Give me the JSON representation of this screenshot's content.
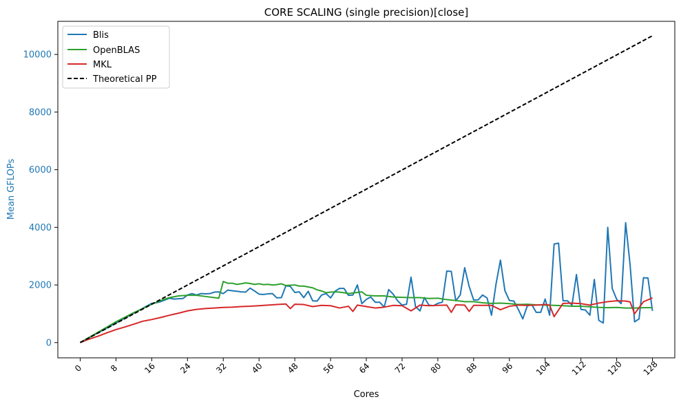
{
  "chart_data": {
    "type": "line",
    "title": "CORE SCALING (single precision)[close]",
    "xlabel": "Cores",
    "ylabel": "Mean GFLOPs",
    "xlim": [
      -5,
      133
    ],
    "ylim": [
      -530,
      11150
    ],
    "xticks": [
      "0",
      "8",
      "16",
      "24",
      "32",
      "40",
      "48",
      "56",
      "64",
      "72",
      "80",
      "88",
      "96",
      "104",
      "112",
      "120",
      "128"
    ],
    "yticks": [
      "0",
      "2000",
      "4000",
      "6000",
      "8000",
      "10000"
    ],
    "ytick_color": "#1f77b4",
    "grid": false,
    "legend_position": "top-left",
    "series": [
      {
        "name": "Blis",
        "color": "#1f77b4",
        "style": "solid",
        "x": [
          0,
          1,
          2,
          3,
          4,
          5,
          6,
          7,
          8,
          9,
          10,
          11,
          12,
          13,
          14,
          15,
          16,
          17,
          18,
          19,
          20,
          21,
          22,
          23,
          24,
          25,
          26,
          27,
          28,
          29,
          30,
          31,
          32,
          33,
          34,
          35,
          36,
          37,
          38,
          39,
          40,
          41,
          42,
          43,
          44,
          45,
          46,
          47,
          48,
          49,
          50,
          51,
          52,
          53,
          54,
          55,
          56,
          57,
          58,
          59,
          60,
          61,
          62,
          63,
          64,
          65,
          66,
          67,
          68,
          69,
          70,
          71,
          72,
          73,
          74,
          75,
          76,
          77,
          78,
          79,
          80,
          81,
          82,
          83,
          84,
          85,
          86,
          87,
          88,
          89,
          90,
          91,
          92,
          93,
          94,
          95,
          96,
          97,
          98,
          99,
          100,
          101,
          102,
          103,
          104,
          105,
          106,
          107,
          108,
          109,
          110,
          111,
          112,
          113,
          114,
          115,
          116,
          117,
          118,
          119,
          120,
          121,
          122,
          123,
          124,
          125,
          126,
          127,
          128
        ],
        "values": [
          0,
          85,
          170,
          255,
          340,
          425,
          510,
          595,
          680,
          765,
          850,
          935,
          1020,
          1105,
          1190,
          1275,
          1360,
          1380,
          1420,
          1480,
          1540,
          1510,
          1520,
          1530,
          1650,
          1700,
          1650,
          1700,
          1690,
          1700,
          1750,
          1760,
          1700,
          1820,
          1800,
          1780,
          1760,
          1750,
          1890,
          1790,
          1680,
          1670,
          1690,
          1700,
          1550,
          1560,
          1970,
          1950,
          1740,
          1760,
          1560,
          1780,
          1450,
          1440,
          1650,
          1700,
          1550,
          1780,
          1880,
          1880,
          1640,
          1650,
          2000,
          1350,
          1500,
          1580,
          1400,
          1400,
          1230,
          1840,
          1680,
          1450,
          1300,
          1330,
          2270,
          1250,
          1100,
          1560,
          1300,
          1280,
          1360,
          1400,
          2480,
          2470,
          1450,
          1650,
          2600,
          1950,
          1480,
          1480,
          1650,
          1550,
          950,
          2020,
          2860,
          1800,
          1460,
          1440,
          1150,
          820,
          1270,
          1320,
          1050,
          1050,
          1510,
          950,
          3420,
          3450,
          1450,
          1450,
          1300,
          2360,
          1150,
          1130,
          950,
          2190,
          770,
          680,
          4000,
          1880,
          1500,
          1350,
          4160,
          2700,
          720,
          820,
          2250,
          2240,
          1100
        ]
      },
      {
        "name": "OpenBLAS",
        "color": "#2ca02c",
        "style": "solid",
        "x": [
          0,
          2,
          4,
          6,
          8,
          10,
          12,
          14,
          16,
          18,
          20,
          22,
          24,
          26,
          28,
          30,
          31,
          32,
          33,
          34,
          35,
          36,
          37,
          38,
          39,
          40,
          41,
          42,
          43,
          44,
          45,
          46,
          47,
          48,
          49,
          50,
          51,
          52,
          53,
          54,
          55,
          56,
          57,
          58,
          59,
          60,
          61,
          62,
          63,
          64,
          66,
          68,
          70,
          72,
          74,
          76,
          78,
          80,
          82,
          84,
          86,
          88,
          90,
          92,
          94,
          96,
          98,
          100,
          102,
          104,
          106,
          108,
          110,
          112,
          114,
          116,
          118,
          120,
          122,
          124,
          126,
          128
        ],
        "values": [
          0,
          180,
          360,
          540,
          720,
          880,
          1040,
          1180,
          1330,
          1460,
          1560,
          1620,
          1640,
          1640,
          1600,
          1560,
          1540,
          2120,
          2060,
          2060,
          2020,
          2040,
          2070,
          2050,
          2020,
          2040,
          2010,
          2020,
          2000,
          2010,
          2040,
          1980,
          1990,
          2000,
          1960,
          1960,
          1930,
          1900,
          1830,
          1790,
          1730,
          1750,
          1760,
          1750,
          1730,
          1700,
          1720,
          1740,
          1760,
          1640,
          1620,
          1620,
          1580,
          1570,
          1560,
          1560,
          1530,
          1540,
          1490,
          1460,
          1420,
          1420,
          1380,
          1360,
          1370,
          1350,
          1320,
          1330,
          1310,
          1300,
          1290,
          1280,
          1260,
          1260,
          1240,
          1220,
          1210,
          1220,
          1200,
          1200,
          1210,
          1210
        ]
      },
      {
        "name": "MKL",
        "color": "#d62728",
        "style": "solid",
        "x": [
          0,
          2,
          4,
          6,
          8,
          10,
          12,
          14,
          16,
          18,
          20,
          22,
          24,
          26,
          28,
          30,
          32,
          34,
          36,
          38,
          40,
          42,
          44,
          46,
          47,
          48,
          50,
          52,
          54,
          56,
          58,
          60,
          61,
          62,
          64,
          66,
          68,
          70,
          72,
          74,
          76,
          78,
          80,
          82,
          83,
          84,
          86,
          87,
          88,
          90,
          92,
          94,
          96,
          98,
          100,
          102,
          104,
          105,
          106,
          108,
          110,
          112,
          114,
          116,
          118,
          120,
          122,
          123,
          124,
          126,
          128
        ],
        "values": [
          0,
          120,
          220,
          340,
          450,
          540,
          640,
          740,
          800,
          870,
          950,
          1020,
          1100,
          1150,
          1180,
          1200,
          1220,
          1230,
          1250,
          1260,
          1280,
          1300,
          1320,
          1340,
          1180,
          1330,
          1320,
          1250,
          1290,
          1280,
          1200,
          1260,
          1080,
          1300,
          1250,
          1200,
          1230,
          1290,
          1280,
          1100,
          1300,
          1280,
          1290,
          1300,
          1050,
          1310,
          1300,
          1080,
          1290,
          1290,
          1290,
          1140,
          1260,
          1300,
          1290,
          1300,
          1320,
          1300,
          900,
          1360,
          1370,
          1350,
          1300,
          1370,
          1420,
          1450,
          1440,
          1410,
          1000,
          1420,
          1550
        ]
      },
      {
        "name": "Theoretical PP",
        "color": "#000000",
        "style": "dashed",
        "x": [
          0,
          128
        ],
        "values": [
          0,
          10650
        ]
      }
    ]
  }
}
